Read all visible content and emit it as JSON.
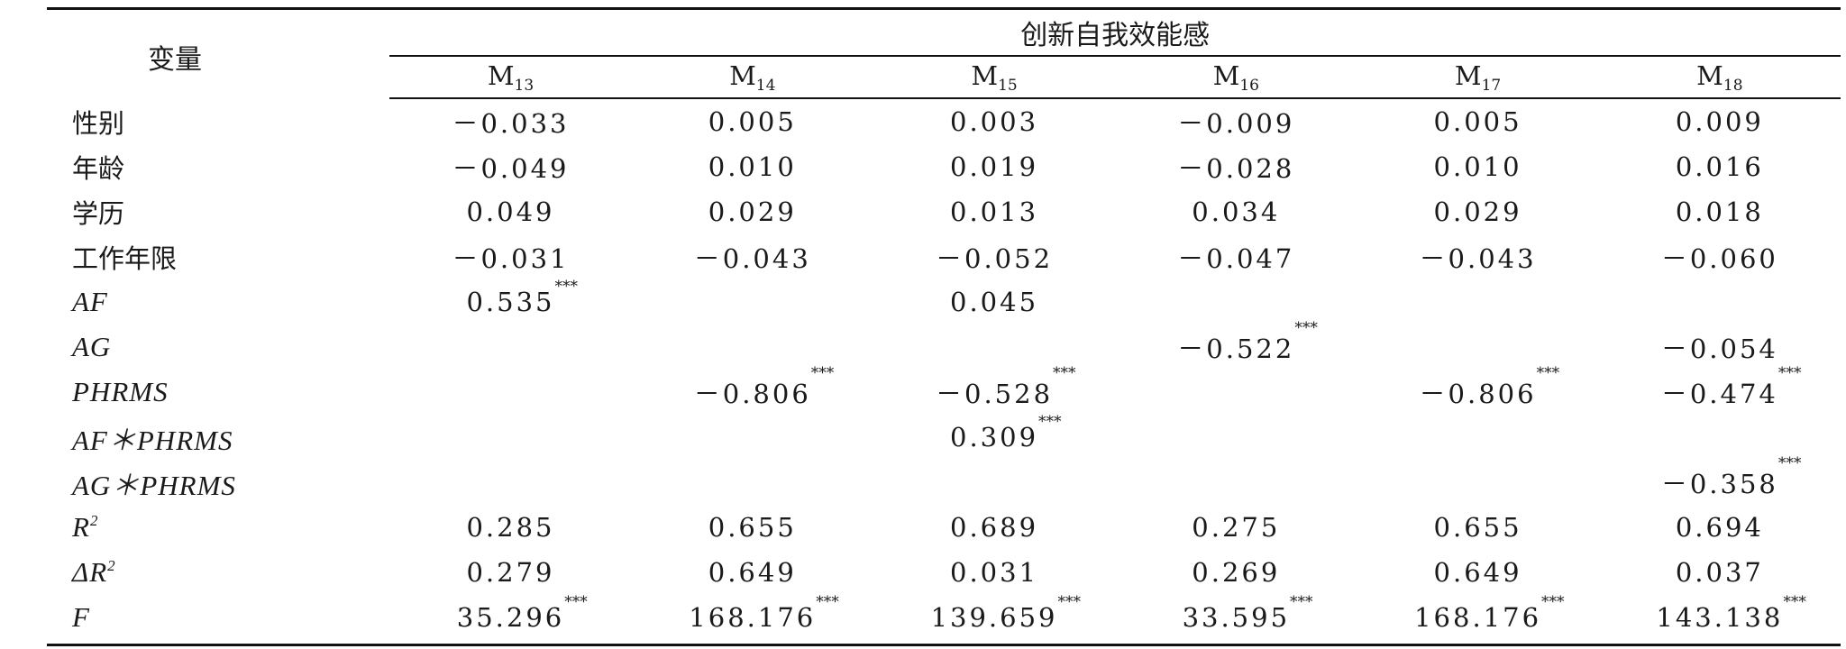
{
  "table": {
    "variable_header": "变量",
    "group_header": "创新自我效能感",
    "models": [
      {
        "name": "M",
        "sub": "13"
      },
      {
        "name": "M",
        "sub": "14"
      },
      {
        "name": "M",
        "sub": "15"
      },
      {
        "name": "M",
        "sub": "16"
      },
      {
        "name": "M",
        "sub": "17"
      },
      {
        "name": "M",
        "sub": "18"
      }
    ],
    "rows": [
      {
        "label": "性别",
        "cells": [
          {
            "v": "－0.033",
            "s": ""
          },
          {
            "v": "0.005",
            "s": ""
          },
          {
            "v": "0.003",
            "s": ""
          },
          {
            "v": "－0.009",
            "s": ""
          },
          {
            "v": "0.005",
            "s": ""
          },
          {
            "v": "0.009",
            "s": ""
          }
        ]
      },
      {
        "label": "年龄",
        "cells": [
          {
            "v": "－0.049",
            "s": ""
          },
          {
            "v": "0.010",
            "s": ""
          },
          {
            "v": "0.019",
            "s": ""
          },
          {
            "v": "－0.028",
            "s": ""
          },
          {
            "v": "0.010",
            "s": ""
          },
          {
            "v": "0.016",
            "s": ""
          }
        ]
      },
      {
        "label": "学历",
        "cells": [
          {
            "v": "0.049",
            "s": ""
          },
          {
            "v": "0.029",
            "s": ""
          },
          {
            "v": "0.013",
            "s": ""
          },
          {
            "v": "0.034",
            "s": ""
          },
          {
            "v": "0.029",
            "s": ""
          },
          {
            "v": "0.018",
            "s": ""
          }
        ]
      },
      {
        "label": "工作年限",
        "cells": [
          {
            "v": "－0.031",
            "s": ""
          },
          {
            "v": "－0.043",
            "s": ""
          },
          {
            "v": "－0.052",
            "s": ""
          },
          {
            "v": "－0.047",
            "s": ""
          },
          {
            "v": "－0.043",
            "s": ""
          },
          {
            "v": "－0.060",
            "s": ""
          }
        ]
      },
      {
        "label": "AF",
        "cells": [
          {
            "v": "0.535",
            "s": "***"
          },
          {
            "v": "",
            "s": ""
          },
          {
            "v": "0.045",
            "s": ""
          },
          {
            "v": "",
            "s": ""
          },
          {
            "v": "",
            "s": ""
          },
          {
            "v": "",
            "s": ""
          }
        ]
      },
      {
        "label": "AG",
        "cells": [
          {
            "v": "",
            "s": ""
          },
          {
            "v": "",
            "s": ""
          },
          {
            "v": "",
            "s": ""
          },
          {
            "v": "－0.522",
            "s": "***"
          },
          {
            "v": "",
            "s": ""
          },
          {
            "v": "－0.054",
            "s": ""
          }
        ]
      },
      {
        "label": "PHRMS",
        "cells": [
          {
            "v": "",
            "s": ""
          },
          {
            "v": "－0.806",
            "s": "***"
          },
          {
            "v": "－0.528",
            "s": "***"
          },
          {
            "v": "",
            "s": ""
          },
          {
            "v": "－0.806",
            "s": "***"
          },
          {
            "v": "－0.474",
            "s": "***"
          }
        ]
      },
      {
        "label": "AF＊PHRMS",
        "cells": [
          {
            "v": "",
            "s": ""
          },
          {
            "v": "",
            "s": ""
          },
          {
            "v": "0.309",
            "s": "***"
          },
          {
            "v": "",
            "s": ""
          },
          {
            "v": "",
            "s": ""
          },
          {
            "v": "",
            "s": ""
          }
        ]
      },
      {
        "label": "AG＊PHRMS",
        "cells": [
          {
            "v": "",
            "s": ""
          },
          {
            "v": "",
            "s": ""
          },
          {
            "v": "",
            "s": ""
          },
          {
            "v": "",
            "s": ""
          },
          {
            "v": "",
            "s": ""
          },
          {
            "v": "－0.358",
            "s": "***"
          }
        ]
      },
      {
        "label": "R",
        "sup": "2",
        "cells": [
          {
            "v": "0.285",
            "s": ""
          },
          {
            "v": "0.655",
            "s": ""
          },
          {
            "v": "0.689",
            "s": ""
          },
          {
            "v": "0.275",
            "s": ""
          },
          {
            "v": "0.655",
            "s": ""
          },
          {
            "v": "0.694",
            "s": ""
          }
        ]
      },
      {
        "label": "ΔR",
        "sup": "2",
        "cells": [
          {
            "v": "0.279",
            "s": ""
          },
          {
            "v": "0.649",
            "s": ""
          },
          {
            "v": "0.031",
            "s": ""
          },
          {
            "v": "0.269",
            "s": ""
          },
          {
            "v": "0.649",
            "s": ""
          },
          {
            "v": "0.037",
            "s": ""
          }
        ]
      },
      {
        "label": "F",
        "cells": [
          {
            "v": "35.296",
            "s": "***"
          },
          {
            "v": "168.176",
            "s": "***"
          },
          {
            "v": "139.659",
            "s": "***"
          },
          {
            "v": "33.595",
            "s": "***"
          },
          {
            "v": "168.176",
            "s": "***"
          },
          {
            "v": "143.138",
            "s": "***"
          }
        ]
      }
    ]
  }
}
